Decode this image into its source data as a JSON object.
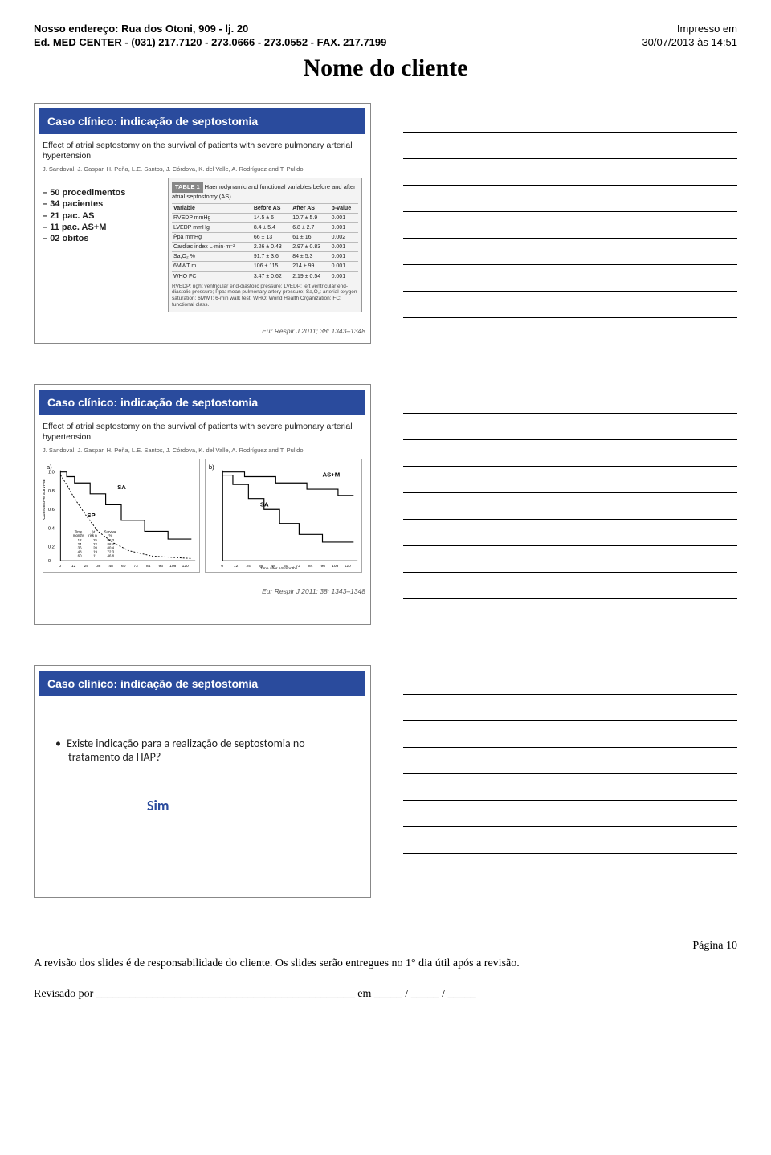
{
  "header": {
    "address": "Nosso endereço:  Rua dos Otoni, 909 - lj. 20",
    "ed": "Ed. MED CENTER - (031) 217.7120 - 273.0666 - 273.0552 - FAX. 217.7199",
    "impresso": "Impresso em",
    "date": "30/07/2013 às 14:51"
  },
  "title": "Nome do cliente",
  "blue_header": "Caso clínico: indicação de septostomia",
  "study_title": "Effect of atrial septostomy on the survival of patients with severe pulmonary arterial hypertension",
  "authors": "J. Sandoval, J. Gaspar, H. Peña, L.E. Santos, J. Córdova, K. del Valle, A. Rodríguez and T. Pulido",
  "procs": [
    "50 procedimentos",
    "34 pacientes",
    "21 pac. AS",
    "11 pac. AS+M",
    "02 obitos"
  ],
  "table": {
    "label": "TABLE 1",
    "caption": "Haemodynamic and functional variables before and after atrial septostomy (AS)",
    "columns": [
      "Variable",
      "Before AS",
      "After AS",
      "p-value"
    ],
    "rows": [
      [
        "RVEDP mmHg",
        "14.5 ± 6",
        "10.7 ± 5.9",
        "0.001"
      ],
      [
        "LVEDP mmHg",
        "8.4 ± 5.4",
        "6.8 ± 2.7",
        "0.001"
      ],
      [
        "P̄pa mmHg",
        "66 ± 13",
        "61 ± 16",
        "0.002"
      ],
      [
        "Cardiac index L·min·m⁻²",
        "2.26 ± 0.43",
        "2.97 ± 0.83",
        "0.001"
      ],
      [
        "Sa,O₂ %",
        "91.7 ± 3.6",
        "84 ± 5.3",
        "0.001"
      ],
      [
        "6MWT m",
        "106 ± 115",
        "214 ± 99",
        "0.001"
      ],
      [
        "WHO FC",
        "3.47 ± 0.62",
        "2.19 ± 0.54",
        "0.001"
      ]
    ],
    "footnote": "RVEDP: right ventricular end-diastolic pressure; LVEDP: left ventricular end-diastolic pressure; P̄pa: mean pulmonary artery pressure; Sa,O₂: arterial oxygen saturation; 6MWT: 6-min walk test; WHO: World Health Organization; FC: functional class."
  },
  "journal": "Eur Respir J 2011; 38: 1343–1348",
  "chart": {
    "a": {
      "label": "a)",
      "ylabel": "Cumulative survival",
      "xlabel": "Time after AS months",
      "yticks": [
        "0",
        "0.2",
        "0.4",
        "0.6",
        "0.8",
        "1.0"
      ],
      "xticks": [
        "0",
        "12",
        "24",
        "36",
        "48",
        "60",
        "72",
        "84",
        "96",
        "108",
        "120"
      ],
      "SA": "SA",
      "SP": "SP",
      "inset_headers": [
        "Time months",
        "At risk n",
        "Survival %"
      ],
      "inset_rows": [
        [
          "12",
          "25",
          "98.3"
        ],
        [
          "24",
          "22",
          "88.4"
        ],
        [
          "36",
          "20",
          "80.4"
        ],
        [
          "48",
          "19",
          "72.3"
        ],
        [
          "60",
          "11",
          "46.8"
        ]
      ]
    },
    "b": {
      "label": "b)",
      "xlabel": "Time after AS months",
      "SA": "SA",
      "ASM": "AS+M"
    },
    "styling": {
      "line_color": "#000000",
      "background": "#ffffff",
      "line_width": 1.2,
      "font_size": 7
    }
  },
  "question": "Existe indicação para a realização de septostomia no tratamento da HAP?",
  "answer": "Sim",
  "footer": {
    "pagina": "Página 10",
    "texto": "A revisão dos slides é de responsabilidade do cliente. Os slides serão entregues no 1° dia útil após a revisão.",
    "revisado": "Revisado por ______________________________________________ em _____ / _____ / _____"
  },
  "colors": {
    "blue": "#2a4b9d",
    "rule": "#000000",
    "gray_bg": "#f3f3f3"
  }
}
